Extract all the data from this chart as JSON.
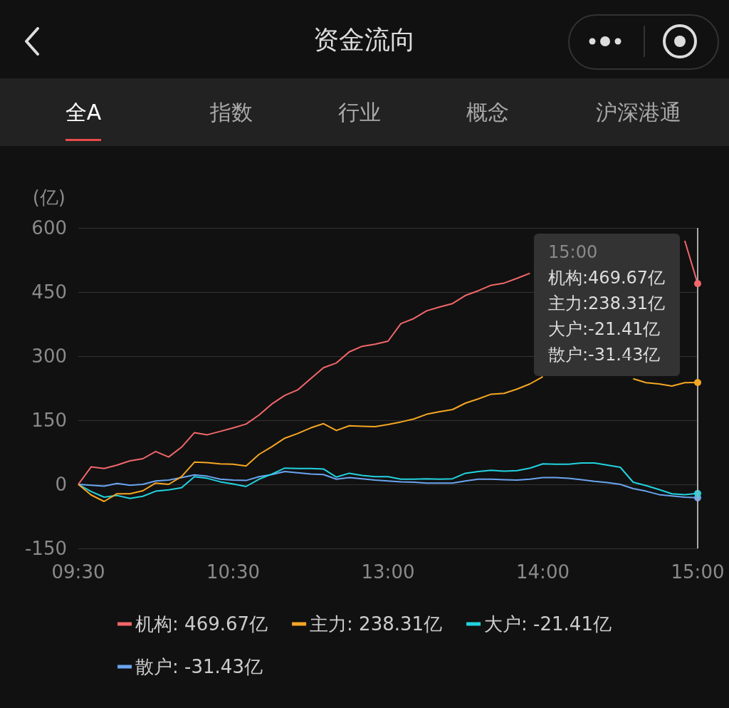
{
  "chart_data": {
    "type": "line",
    "title": "资金流向",
    "ylabel": "(亿)",
    "annotations": [
      "全A",
      "指数",
      "行业",
      "概念",
      "沪深港通",
      "15:00",
      "机构:469.67亿",
      "主力:238.31亿",
      "大户:-21.41亿",
      "散户:-31.43亿"
    ],
    "categories": [
      "09:30",
      null,
      null,
      null,
      null,
      null,
      null,
      null,
      null,
      null,
      null,
      null,
      "10:30",
      null,
      null,
      null,
      null,
      null,
      null,
      null,
      null,
      null,
      null,
      null,
      "13:00",
      null,
      null,
      null,
      null,
      null,
      null,
      null,
      null,
      null,
      null,
      null,
      "14:00",
      null,
      null,
      null,
      null,
      null,
      null,
      null,
      null,
      null,
      null,
      null,
      "15:00"
    ],
    "ylim": [
      -150,
      600
    ],
    "yticks": [
      -150,
      0,
      150,
      300,
      450,
      600
    ],
    "grid": "y",
    "legend": "bottom",
    "ref_lines": [
      {
        "axis": "x",
        "value": "15:00",
        "color": "#aaaaaa"
      }
    ],
    "series": [
      {
        "name": "机构: 469.67亿",
        "color": "#f2676a",
        "values": [
          0,
          41,
          37,
          45,
          55,
          60,
          77,
          64,
          87,
          121,
          116,
          124,
          132,
          141,
          162,
          188,
          208,
          221,
          247,
          273,
          284,
          310,
          323,
          328,
          335,
          376,
          388,
          406,
          415,
          423,
          442,
          453,
          466,
          471,
          482,
          494,
          null,
          null,
          null,
          null,
          null,
          null,
          null,
          null,
          null,
          null,
          null,
          570,
          469.67
        ]
      },
      {
        "name": "主力: 238.31亿",
        "color": "#f5a623",
        "values": [
          0,
          -25,
          -40,
          -22,
          -22,
          -15,
          3,
          0,
          18,
          52,
          51,
          48,
          47,
          43,
          70,
          88,
          108,
          119,
          132,
          142,
          126,
          137,
          136,
          135,
          140,
          146,
          153,
          164,
          170,
          175,
          190,
          200,
          211,
          213,
          223,
          235,
          252,
          null,
          null,
          null,
          null,
          null,
          null,
          247,
          238,
          235,
          230,
          238,
          238.31
        ]
      },
      {
        "name": "大户: -21.41亿",
        "color": "#22d3e0",
        "values": [
          0,
          -17,
          -30,
          -26,
          -33,
          -28,
          -16,
          -13,
          -8,
          18,
          14,
          6,
          1,
          -5,
          12,
          24,
          38,
          37,
          37,
          36,
          17,
          26,
          21,
          18,
          18,
          12,
          12,
          13,
          12,
          13,
          26,
          30,
          33,
          31,
          32,
          38,
          48,
          47,
          47,
          50,
          50,
          45,
          40,
          5,
          -3,
          -12,
          -22,
          -24,
          -21.41
        ]
      },
      {
        "name": "散户: -31.43亿",
        "color": "#6aa5f0",
        "values": [
          0,
          -2,
          -4,
          2,
          -2,
          0,
          8,
          10,
          16,
          22,
          19,
          12,
          10,
          9,
          18,
          23,
          30,
          27,
          24,
          23,
          12,
          16,
          13,
          10,
          8,
          6,
          5,
          3,
          3,
          3,
          8,
          12,
          12,
          11,
          10,
          12,
          16,
          16,
          14,
          11,
          7,
          4,
          0,
          -10,
          -16,
          -24,
          -27,
          -30,
          -31.43
        ]
      }
    ]
  }
}
